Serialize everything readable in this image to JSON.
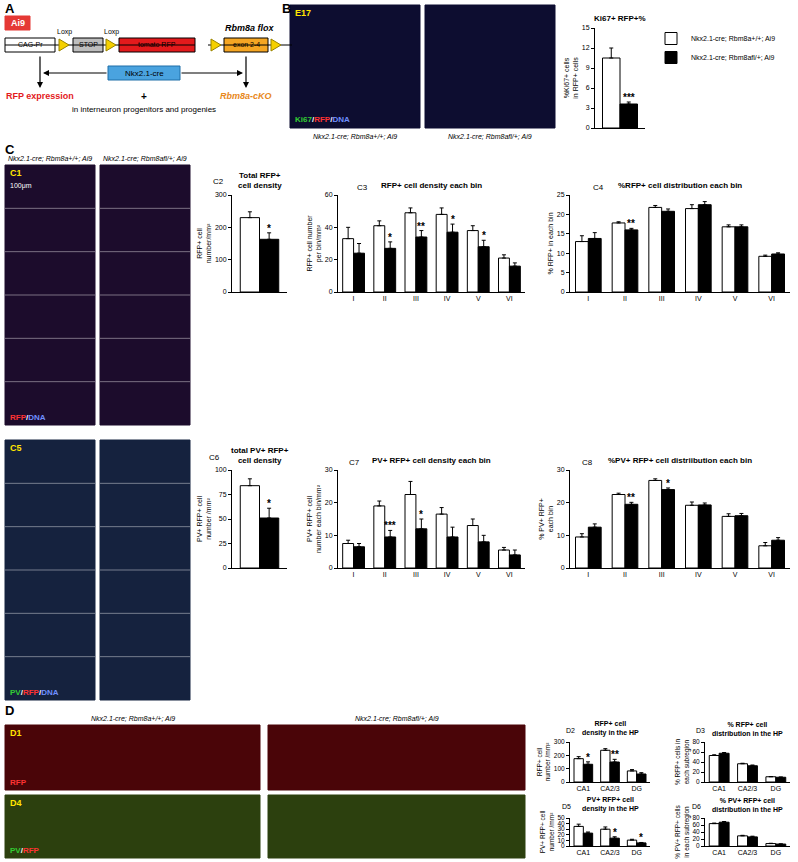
{
  "panel_labels": [
    "A",
    "B",
    "C",
    "D"
  ],
  "diagram": {
    "ai9": "Ai9",
    "promoter": "CAG-Pr",
    "stop": "STOP",
    "loxp": [
      "Loxp",
      "Loxp"
    ],
    "reporter": "tomato RFP",
    "flox_title": "Rbm8a flox",
    "exon": "exon 2-4",
    "cre": "Nkx2.1-cre",
    "rfp_result": "RFP expression",
    "plus": "+",
    "cko": "Rbm8a-cKO",
    "note": "in interneuron progenitors and progenies"
  },
  "micrographs": [
    {
      "tag": "E17",
      "stain": [
        {
          "text": "Ki67",
          "color": "#33cc33"
        },
        {
          "text": "/",
          "color": "#ffffff"
        },
        {
          "text": "RFP",
          "color": "#ff3333"
        },
        {
          "text": "/",
          "color": "#ffffff"
        },
        {
          "text": "DNA",
          "color": "#6f8fff"
        }
      ],
      "captions": [
        "Nkx2.1-cre; Rbm8a+/+; Ai9",
        "Nkx2.1-cre; Rbm8afl/+; Ai9"
      ],
      "color": "#0d0d30"
    },
    {
      "tag": "C1",
      "scale": "100μm",
      "stain": [
        {
          "text": "RFP",
          "color": "#ff3333"
        },
        {
          "text": "/",
          "color": "#ffffff"
        },
        {
          "text": "DNA",
          "color": "#6f8fff"
        }
      ],
      "captions": [
        "Nkx2.1-cre; Rbm8a+/+; Ai9",
        "Nkx2.1-cre; Rbm8afl/+; Ai9"
      ],
      "color": "#1c0c2c"
    },
    {
      "tag": "C5",
      "stain": [
        {
          "text": "PV",
          "color": "#33cc33"
        },
        {
          "text": "/",
          "color": "#ffffff"
        },
        {
          "text": "RFP",
          "color": "#ff3333"
        },
        {
          "text": "/",
          "color": "#ffffff"
        },
        {
          "text": "DNA",
          "color": "#6f8fff"
        }
      ],
      "color": "#15223e"
    },
    {
      "tag": "D1",
      "stain": [
        {
          "text": "RFP",
          "color": "#ff3333"
        }
      ],
      "captions": [
        "Nkx2.1-cre; Rbm8a+/+; Ai9",
        "Nkx2.1-cre; Rbm8afl/+; Ai9"
      ],
      "color": "#4a0508"
    },
    {
      "tag": "D4",
      "stain": [
        {
          "text": "PV",
          "color": "#33cc33"
        },
        {
          "text": "/",
          "color": "#ffffff"
        },
        {
          "text": "RFP",
          "color": "#ff3333"
        }
      ],
      "color": "#2c400e"
    }
  ],
  "chart_data": [
    {
      "type": "bar",
      "title": "Ki67+ RFP+%",
      "y_label": "%Ki67+ cells in RFP+ cells",
      "categories": [
        null
      ],
      "series": [
        {
          "name": "Nkx2.1-cre; Rbm8a+/+; Ai9",
          "color": "#ffffff",
          "values": [
            10.5
          ],
          "errors": [
            1.5
          ]
        },
        {
          "name": "Nkx2.1-cre; Rbm8afl/+; Ai9",
          "color": "#000000",
          "values": [
            3.6
          ],
          "errors": [
            0.3
          ]
        }
      ],
      "significance": [
        "***"
      ],
      "ylim": [
        0,
        15
      ],
      "yticks": [
        0,
        3,
        6,
        9,
        12,
        15
      ],
      "grid": false,
      "legend": "top right",
      "tick_labels": "y"
    },
    {
      "type": "bar",
      "label": "C2",
      "title": "Total RFP+ cell density",
      "y_label": "RFP+ cell number/mm²",
      "categories": [
        null
      ],
      "series": [
        {
          "color": "#ffffff",
          "values": [
            230
          ],
          "errors": [
            18
          ]
        },
        {
          "color": "#000000",
          "values": [
            163
          ],
          "errors": [
            20
          ]
        }
      ],
      "significance": [
        "*"
      ],
      "ylim": [
        0,
        300
      ],
      "yticks": [
        0,
        100,
        200,
        300
      ],
      "grid": false,
      "tick_labels": "y"
    },
    {
      "type": "bar",
      "label": "C3",
      "title": "RFP+ cell density each bin",
      "y_label": "RFP+ cell number per bin/mm²",
      "categories": [
        "I",
        "II",
        "III",
        "IV",
        "V",
        "VI"
      ],
      "series": [
        {
          "color": "#ffffff",
          "values": [
            33,
            41,
            49,
            48,
            38,
            21
          ],
          "errors": [
            7,
            3,
            3,
            4,
            3,
            2
          ]
        },
        {
          "color": "#000000",
          "values": [
            24,
            27,
            34,
            37,
            28,
            16
          ],
          "errors": [
            6,
            4,
            4,
            5,
            4,
            2
          ]
        }
      ],
      "significance": [
        null,
        "*",
        "**",
        "*",
        "*",
        null
      ],
      "ylim": [
        0,
        60
      ],
      "yticks": [
        0,
        20,
        40,
        60
      ],
      "grid": false
    },
    {
      "type": "bar",
      "label": "C4",
      "title": "%RFP+ cell distribution each bin",
      "y_label": "% RFP+ in each bin",
      "categories": [
        "I",
        "II",
        "III",
        "IV",
        "V",
        "VI"
      ],
      "series": [
        {
          "color": "#ffffff",
          "values": [
            13,
            17.8,
            21.8,
            21.5,
            16.8,
            9.2
          ],
          "errors": [
            1.5,
            0.3,
            0.5,
            1,
            0.5,
            0.3
          ]
        },
        {
          "color": "#000000",
          "values": [
            13.8,
            16,
            20.8,
            22.5,
            16.8,
            9.8
          ],
          "errors": [
            1.5,
            0.4,
            0.6,
            0.8,
            0.5,
            0.3
          ]
        }
      ],
      "significance": [
        null,
        "**",
        null,
        null,
        null,
        null
      ],
      "ylim": [
        0,
        25
      ],
      "yticks": [
        0,
        5,
        10,
        15,
        20,
        25
      ],
      "grid": false
    },
    {
      "type": "bar",
      "label": "C6",
      "title": "total PV+ RFP+ cell density",
      "y_label": "PV+ RFP+ cell number /mm²",
      "categories": [
        null
      ],
      "series": [
        {
          "color": "#ffffff",
          "values": [
            84
          ],
          "errors": [
            7
          ]
        },
        {
          "color": "#000000",
          "values": [
            51
          ],
          "errors": [
            10
          ]
        }
      ],
      "significance": [
        "*"
      ],
      "ylim": [
        0,
        100
      ],
      "yticks": [
        0,
        25,
        50,
        75,
        100
      ],
      "grid": false,
      "tick_labels": "y"
    },
    {
      "type": "bar",
      "label": "C7",
      "title": "PV+ RFP+ cell density each bin",
      "y_label": "PV+ RFP+ cell number each bin/mm²",
      "categories": [
        "I",
        "II",
        "III",
        "IV",
        "V",
        "VI"
      ],
      "series": [
        {
          "color": "#ffffff",
          "values": [
            7.5,
            19,
            22.5,
            16.5,
            13,
            5.5
          ],
          "errors": [
            1,
            1.5,
            4,
            2,
            2,
            0.8
          ]
        },
        {
          "color": "#000000",
          "values": [
            6.5,
            9.5,
            12,
            9.5,
            8,
            4
          ],
          "errors": [
            1,
            2,
            3,
            3,
            2,
            1.5
          ]
        }
      ],
      "significance": [
        null,
        "***",
        "*",
        null,
        null,
        null
      ],
      "ylim": [
        0,
        30
      ],
      "yticks": [
        0,
        10,
        20,
        30
      ],
      "grid": false
    },
    {
      "type": "bar",
      "label": "C8",
      "title": "%PV+ RFP+ cell distriibution each bin",
      "y_label": "% PV+ RFP+ each bin",
      "categories": [
        "I",
        "II",
        "III",
        "IV",
        "V",
        "VI"
      ],
      "series": [
        {
          "color": "#ffffff",
          "values": [
            9.5,
            22.5,
            26.8,
            19.2,
            15.8,
            6.8
          ],
          "errors": [
            1,
            0.4,
            0.5,
            1,
            0.8,
            1
          ]
        },
        {
          "color": "#000000",
          "values": [
            12.5,
            19.5,
            24,
            19.3,
            16,
            8.5
          ],
          "errors": [
            1,
            0.6,
            0.5,
            0.6,
            0.7,
            0.8
          ]
        }
      ],
      "significance": [
        null,
        "**",
        "*",
        null,
        null,
        null
      ],
      "ylim": [
        0,
        30
      ],
      "yticks": [
        0,
        10,
        20,
        30
      ],
      "grid": false
    },
    {
      "type": "bar",
      "label": "D2",
      "title": "RFP+ cell density in the HP",
      "y_label": "RFP+ cell number /mm²",
      "categories": [
        "CA1",
        "CA2/3",
        "DG"
      ],
      "series": [
        {
          "color": "#ffffff",
          "values": [
            175,
            238,
            83
          ],
          "errors": [
            15,
            12,
            10
          ]
        },
        {
          "color": "#000000",
          "values": [
            133,
            150,
            60
          ],
          "errors": [
            18,
            20,
            10
          ]
        }
      ],
      "significance": [
        "*",
        "**",
        null
      ],
      "ylim": [
        0,
        300
      ],
      "yticks": [
        0,
        100,
        200,
        300
      ],
      "grid": false
    },
    {
      "type": "bar",
      "label": "D3",
      "title": "% RFP+ cell distribution in the HP",
      "y_label": "% RFP+ cells in each subregion",
      "categories": [
        "CA1",
        "CA2/3",
        "DG"
      ],
      "series": [
        {
          "color": "#ffffff",
          "values": [
            53,
            36.5,
            10.5
          ],
          "errors": [
            1.5,
            1,
            0.5
          ]
        },
        {
          "color": "#000000",
          "values": [
            57.5,
            32.5,
            9.5
          ],
          "errors": [
            1.5,
            1.5,
            0.5
          ]
        }
      ],
      "significance": [
        null,
        null,
        null
      ],
      "ylim": [
        0,
        80
      ],
      "yticks": [
        0,
        20,
        40,
        60,
        80
      ],
      "grid": false
    },
    {
      "type": "bar",
      "label": "D5",
      "title": "PV+ RFP+ cell density in the HP",
      "y_label": "PV+ RFP+ cell number /mm²",
      "categories": [
        "CA1",
        "CA2/3",
        "DG"
      ],
      "series": [
        {
          "color": "#ffffff",
          "values": [
            35,
            30,
            10.5
          ],
          "errors": [
            4,
            4,
            1.5
          ]
        },
        {
          "color": "#000000",
          "values": [
            23,
            14,
            5.5
          ],
          "errors": [
            2,
            2.5,
            0.8
          ]
        }
      ],
      "significance": [
        null,
        "*",
        "*"
      ],
      "ylim": [
        0,
        50
      ],
      "yticks": [
        0,
        10,
        20,
        30,
        40,
        50
      ],
      "grid": false
    },
    {
      "type": "bar",
      "label": "D6",
      "title": "% PV+ RFP+ cell distribution in the HP",
      "y_label": "% PV+ RFP+ cells in each subregion",
      "categories": [
        "CA1",
        "CA2/3",
        "DG"
      ],
      "series": [
        {
          "color": "#ffffff",
          "values": [
            64,
            29,
            7
          ],
          "errors": [
            1.5,
            1.5,
            0.8
          ]
        },
        {
          "color": "#000000",
          "values": [
            68,
            26,
            5.5
          ],
          "errors": [
            2,
            2,
            0.5
          ]
        }
      ],
      "significance": [
        null,
        null,
        null
      ],
      "ylim": [
        0,
        80
      ],
      "yticks": [
        0,
        20,
        40,
        60,
        80
      ],
      "grid": false
    }
  ]
}
